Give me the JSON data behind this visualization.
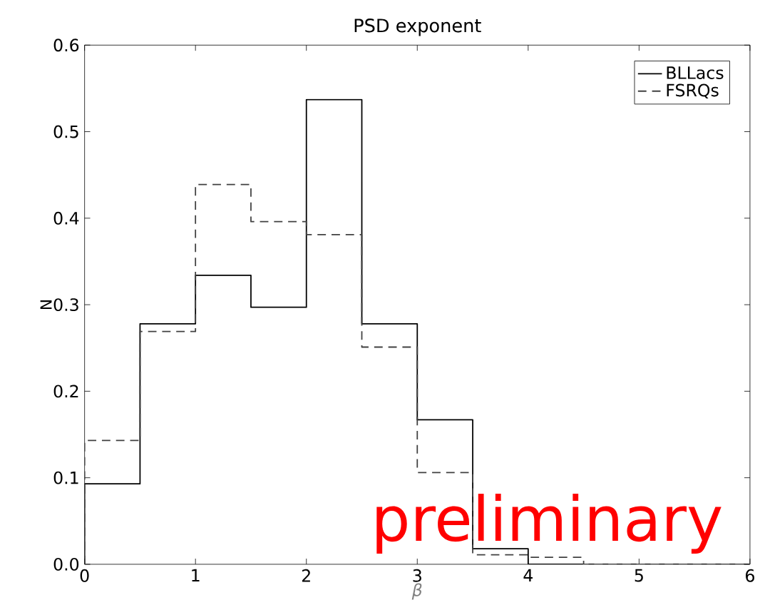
{
  "chart_data": {
    "type": "histogram",
    "title": "PSD exponent",
    "xlabel": "β",
    "ylabel": "N",
    "bins": [
      0,
      0.5,
      1,
      1.5,
      2,
      2.5,
      3,
      3.5,
      4,
      4.5,
      5,
      5.5,
      6
    ],
    "series": [
      {
        "name": "BLLacs",
        "color": "#000000",
        "line_style": "solid",
        "values": [
          0.093,
          0.278,
          0.334,
          0.297,
          0.537,
          0.278,
          0.167,
          0.018,
          0,
          0,
          0,
          0
        ]
      },
      {
        "name": "FSRQs",
        "color": "#404040",
        "line_style": "dashed",
        "values": [
          0.143,
          0.269,
          0.439,
          0.396,
          0.381,
          0.251,
          0.106,
          0.011,
          0.008,
          0,
          0,
          0
        ]
      }
    ],
    "xlim": [
      0,
      6
    ],
    "ylim": [
      0,
      0.6
    ],
    "xticks": [
      0,
      1,
      2,
      3,
      4,
      5,
      6
    ],
    "yticks": [
      {
        "value": 0,
        "label": "0.0"
      },
      0.1,
      0.2,
      0.3,
      0.4,
      0.5,
      0.6
    ],
    "legend": "top right",
    "grid": false,
    "annotations": [
      "preliminary"
    ]
  }
}
